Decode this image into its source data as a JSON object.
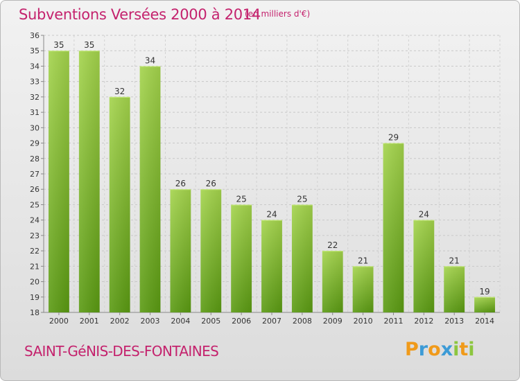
{
  "header": {
    "title": "Subventions Versées 2000 à 2014",
    "unit": "(en milliers d'€)"
  },
  "footer": {
    "commune": "SAINT-GéNIS-DES-FONTAINES",
    "logo": "Proxiti"
  },
  "colors": {
    "accent": "#c4226d",
    "bar_top": "#9fd047",
    "bar_bottom": "#5a9a12"
  },
  "chart_data": {
    "type": "bar",
    "title": "Subventions Versées 2000 à 2014",
    "subtitle": "(en milliers d'€)",
    "xlabel": "",
    "ylabel": "",
    "ylim": [
      18,
      36
    ],
    "yticks": [
      18,
      19,
      20,
      21,
      22,
      23,
      24,
      25,
      26,
      27,
      28,
      29,
      30,
      31,
      32,
      33,
      34,
      35,
      36
    ],
    "grid": true,
    "categories": [
      "2000",
      "2001",
      "2002",
      "2003",
      "2004",
      "2005",
      "2006",
      "2007",
      "2008",
      "2009",
      "2010",
      "2011",
      "2012",
      "2013",
      "2014"
    ],
    "values": [
      35,
      35,
      32,
      34,
      26,
      26,
      25,
      24,
      25,
      22,
      21,
      29,
      24,
      21,
      19
    ]
  }
}
